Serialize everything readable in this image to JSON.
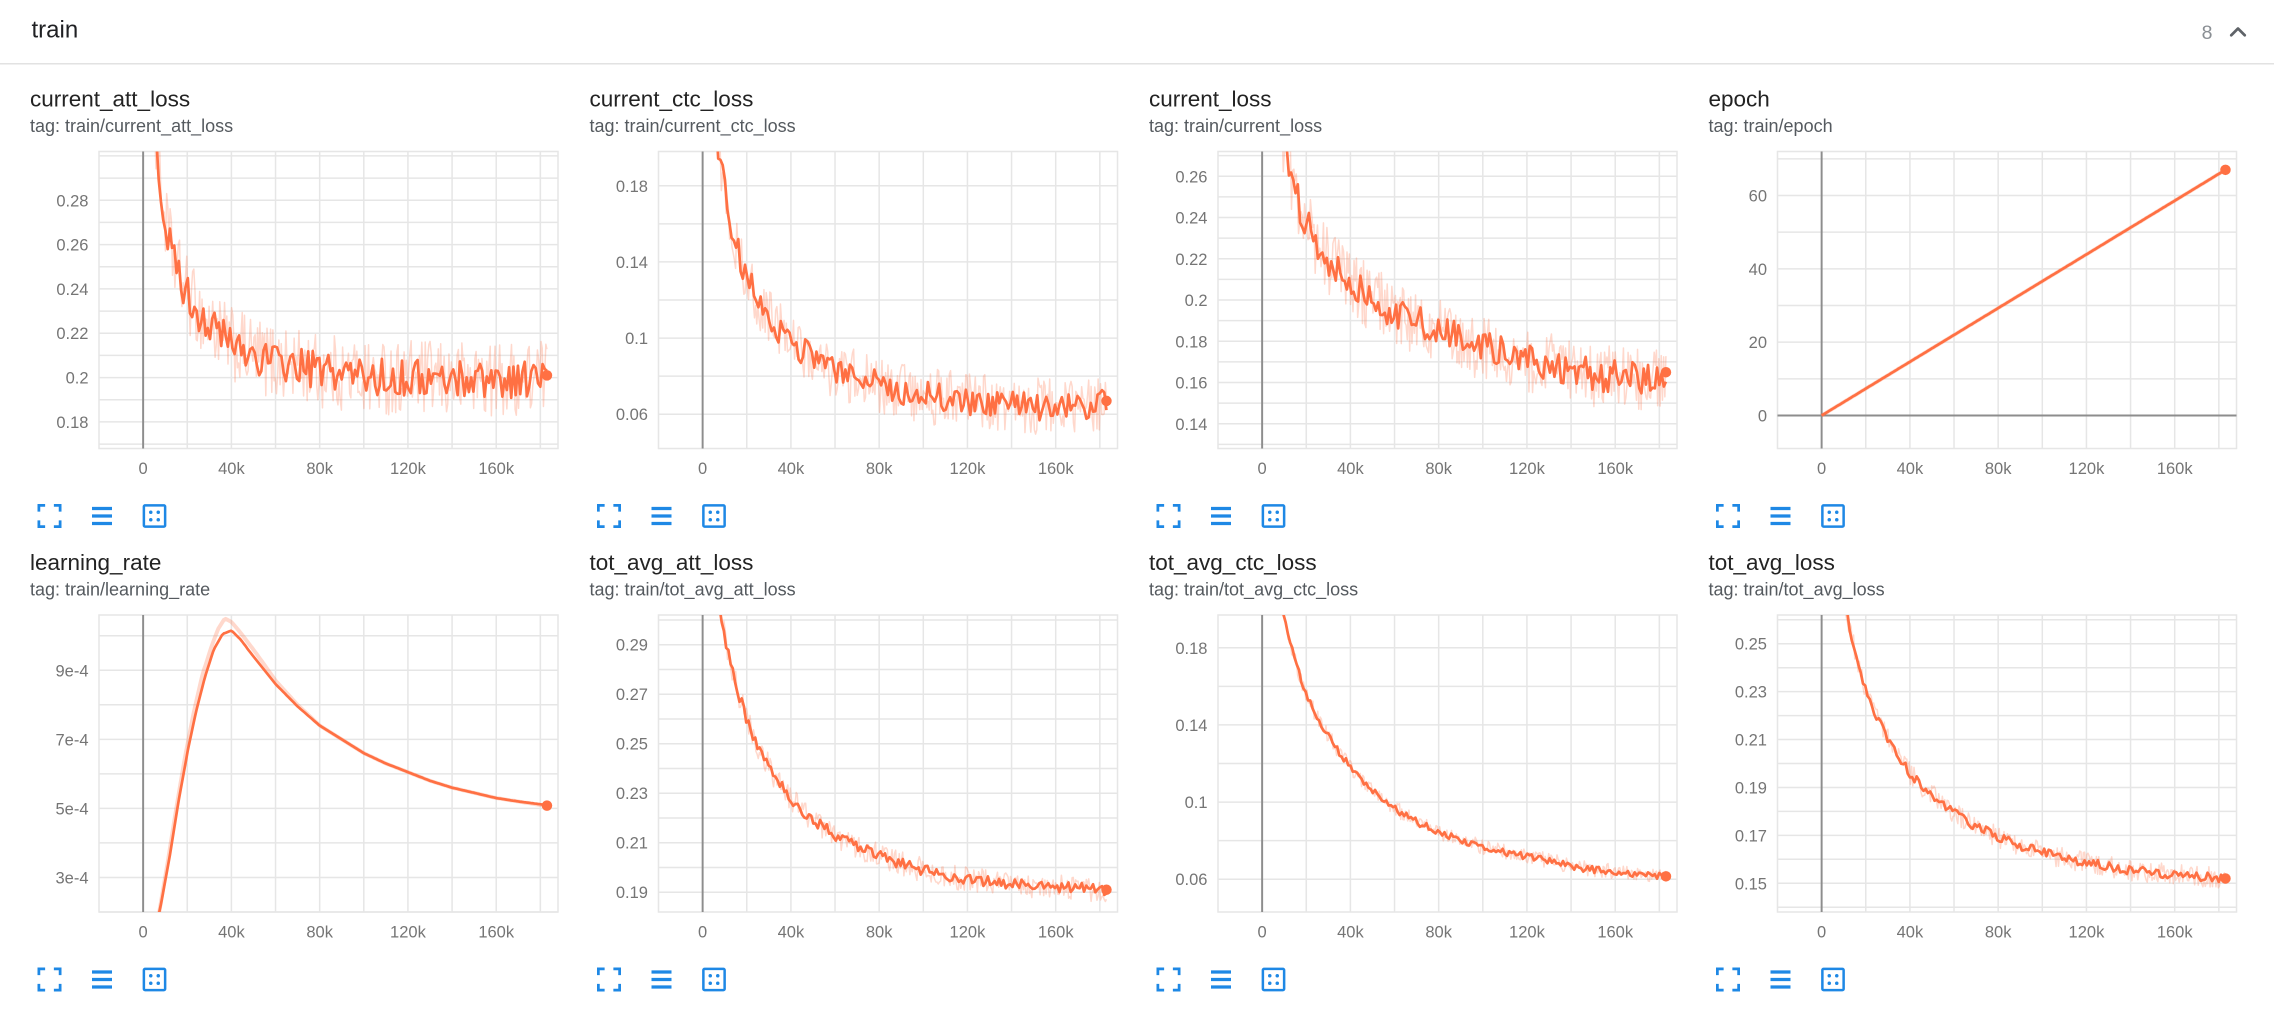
{
  "header": {
    "section_title": "train",
    "card_count": "8"
  },
  "colors": {
    "line": "#ff7043",
    "line_light_opacity": 0.27,
    "icon_blue": "#1e88e5",
    "grid": "#e6e6e6",
    "zero_line": "#8d8d8d",
    "tick_label": "#757575",
    "divider": "#e2e2e2"
  },
  "card_controls": {
    "buttons": [
      {
        "name": "fullscreen-button",
        "icon": "fullscreen-icon"
      },
      {
        "name": "data-table-button",
        "icon": "data-table-icon"
      },
      {
        "name": "fit-domain-button",
        "icon": "fit-domain-icon"
      }
    ]
  },
  "chart_data": [
    {
      "type": "line",
      "title": "current_att_loss",
      "tag": "tag: train/current_att_loss",
      "xlabel": "",
      "ylabel": "",
      "legend": "none",
      "grid": true,
      "xlim": [
        -20000,
        188000
      ],
      "x_ticks": [
        0,
        40000,
        80000,
        120000,
        160000
      ],
      "x_tick_labels": [
        "0",
        "40k",
        "80k",
        "120k",
        "160k"
      ],
      "ylim": [
        0.168,
        0.302
      ],
      "y_ticks": [
        0.18,
        0.2,
        0.22,
        0.24,
        0.26,
        0.28
      ],
      "y_tick_labels": [
        "0.18",
        "0.2",
        "0.22",
        "0.24",
        "0.26",
        "0.28"
      ],
      "noise": 0.0085,
      "raw_noise": 0.017,
      "end_dot": true,
      "trend": [
        [
          1000,
          0.41
        ],
        [
          2500,
          0.36
        ],
        [
          5000,
          0.315
        ],
        [
          8000,
          0.285
        ],
        [
          11000,
          0.265
        ],
        [
          14000,
          0.252
        ],
        [
          18000,
          0.242
        ],
        [
          22000,
          0.234
        ],
        [
          27000,
          0.227
        ],
        [
          33000,
          0.221
        ],
        [
          40000,
          0.215
        ],
        [
          48000,
          0.211
        ],
        [
          56000,
          0.208
        ],
        [
          65000,
          0.206
        ],
        [
          75000,
          0.204
        ],
        [
          90000,
          0.202
        ],
        [
          105000,
          0.2
        ],
        [
          120000,
          0.2
        ],
        [
          135000,
          0.199
        ],
        [
          150000,
          0.2
        ],
        [
          165000,
          0.199
        ],
        [
          175000,
          0.2
        ],
        [
          183000,
          0.201
        ]
      ]
    },
    {
      "type": "line",
      "title": "current_ctc_loss",
      "tag": "tag: train/current_ctc_loss",
      "xlabel": "",
      "ylabel": "",
      "legend": "none",
      "grid": true,
      "xlim": [
        -20000,
        188000
      ],
      "x_ticks": [
        0,
        40000,
        80000,
        120000,
        160000
      ],
      "x_tick_labels": [
        "0",
        "40k",
        "80k",
        "120k",
        "160k"
      ],
      "ylim": [
        0.042,
        0.198
      ],
      "y_ticks": [
        0.06,
        0.1,
        0.14,
        0.18
      ],
      "y_tick_labels": [
        "0.06",
        "0.1",
        "0.14",
        "0.18"
      ],
      "noise": 0.0075,
      "raw_noise": 0.015,
      "end_dot": true,
      "trend": [
        [
          1000,
          0.3
        ],
        [
          3000,
          0.25
        ],
        [
          6000,
          0.21
        ],
        [
          9000,
          0.185
        ],
        [
          12000,
          0.165
        ],
        [
          15000,
          0.15
        ],
        [
          19000,
          0.135
        ],
        [
          24000,
          0.122
        ],
        [
          30000,
          0.111
        ],
        [
          37000,
          0.101
        ],
        [
          45000,
          0.093
        ],
        [
          55000,
          0.086
        ],
        [
          65000,
          0.081
        ],
        [
          78000,
          0.076
        ],
        [
          92000,
          0.072
        ],
        [
          106000,
          0.069
        ],
        [
          120000,
          0.067
        ],
        [
          135000,
          0.065
        ],
        [
          150000,
          0.064
        ],
        [
          165000,
          0.064
        ],
        [
          175000,
          0.065
        ],
        [
          183000,
          0.067
        ]
      ]
    },
    {
      "type": "line",
      "title": "current_loss",
      "tag": "tag: train/current_loss",
      "xlabel": "",
      "ylabel": "",
      "legend": "none",
      "grid": true,
      "xlim": [
        -20000,
        188000
      ],
      "x_ticks": [
        0,
        40000,
        80000,
        120000,
        160000
      ],
      "x_tick_labels": [
        "0",
        "40k",
        "80k",
        "120k",
        "160k"
      ],
      "ylim": [
        0.128,
        0.272
      ],
      "y_ticks": [
        0.14,
        0.16,
        0.18,
        0.2,
        0.22,
        0.24,
        0.26
      ],
      "y_tick_labels": [
        "0.14",
        "0.16",
        "0.18",
        "0.2",
        "0.22",
        "0.24",
        "0.26"
      ],
      "noise": 0.008,
      "raw_noise": 0.016,
      "end_dot": true,
      "trend": [
        [
          1000,
          0.37
        ],
        [
          3000,
          0.33
        ],
        [
          6000,
          0.3
        ],
        [
          9000,
          0.28
        ],
        [
          12000,
          0.265
        ],
        [
          15000,
          0.252
        ],
        [
          19000,
          0.24
        ],
        [
          24000,
          0.229
        ],
        [
          30000,
          0.219
        ],
        [
          37000,
          0.211
        ],
        [
          45000,
          0.204
        ],
        [
          55000,
          0.197
        ],
        [
          65000,
          0.192
        ],
        [
          78000,
          0.186
        ],
        [
          92000,
          0.18
        ],
        [
          106000,
          0.175
        ],
        [
          120000,
          0.171
        ],
        [
          135000,
          0.167
        ],
        [
          150000,
          0.164
        ],
        [
          165000,
          0.162
        ],
        [
          175000,
          0.163
        ],
        [
          183000,
          0.165
        ]
      ]
    },
    {
      "type": "line",
      "title": "epoch",
      "tag": "tag: train/epoch",
      "xlabel": "",
      "ylabel": "",
      "legend": "none",
      "grid": true,
      "xlim": [
        -20000,
        188000
      ],
      "x_ticks": [
        0,
        40000,
        80000,
        120000,
        160000
      ],
      "x_tick_labels": [
        "0",
        "40k",
        "80k",
        "120k",
        "160k"
      ],
      "ylim": [
        -9,
        72
      ],
      "y_ticks": [
        0,
        20,
        40,
        60
      ],
      "y_tick_labels": [
        "0",
        "20",
        "40",
        "60"
      ],
      "noise": 0,
      "raw_noise": 0,
      "end_dot": true,
      "zero_y_line": true,
      "trend": [
        [
          0,
          0
        ],
        [
          183000,
          67
        ]
      ]
    },
    {
      "type": "line",
      "title": "learning_rate",
      "tag": "tag: train/learning_rate",
      "xlabel": "",
      "ylabel": "",
      "legend": "none",
      "grid": true,
      "xlim": [
        -20000,
        188000
      ],
      "x_ticks": [
        0,
        40000,
        80000,
        120000,
        160000
      ],
      "x_tick_labels": [
        "0",
        "40k",
        "80k",
        "120k",
        "160k"
      ],
      "ylim": [
        0.0002,
        0.00106
      ],
      "y_ticks": [
        0.0003,
        0.0005,
        0.0007,
        0.0009
      ],
      "y_tick_labels": [
        "3e-4",
        "5e-4",
        "7e-4",
        "9e-4"
      ],
      "noise": 0,
      "raw_noise": 0,
      "end_dot": true,
      "trend": [
        [
          4000,
          0.0001
        ],
        [
          8000,
          0.00022
        ],
        [
          12000,
          0.00036
        ],
        [
          16000,
          0.00052
        ],
        [
          20000,
          0.00066
        ],
        [
          24000,
          0.00078
        ],
        [
          28000,
          0.00088
        ],
        [
          32000,
          0.00096
        ],
        [
          36000,
          0.001005
        ],
        [
          40000,
          0.001015
        ],
        [
          44000,
          0.00099
        ],
        [
          50000,
          0.00094
        ],
        [
          60000,
          0.00086
        ],
        [
          70000,
          0.000795
        ],
        [
          80000,
          0.00074
        ],
        [
          90000,
          0.0007
        ],
        [
          100000,
          0.00066
        ],
        [
          110000,
          0.00063
        ],
        [
          120000,
          0.000605
        ],
        [
          130000,
          0.00058
        ],
        [
          140000,
          0.00056
        ],
        [
          150000,
          0.000545
        ],
        [
          160000,
          0.00053
        ],
        [
          170000,
          0.00052
        ],
        [
          180000,
          0.000512
        ],
        [
          183000,
          0.000508
        ]
      ],
      "raw_trend": [
        [
          3000,
          6e-05
        ],
        [
          7000,
          0.00019
        ],
        [
          11000,
          0.00034
        ],
        [
          15000,
          0.0005
        ],
        [
          19000,
          0.00065
        ],
        [
          23000,
          0.00078
        ],
        [
          27000,
          0.00089
        ],
        [
          31000,
          0.00097
        ],
        [
          34000,
          0.00102
        ],
        [
          37000,
          0.00105
        ],
        [
          40000,
          0.00104
        ],
        [
          44000,
          0.00101
        ],
        [
          50000,
          0.00096
        ],
        [
          60000,
          0.00087
        ],
        [
          70000,
          0.0008
        ],
        [
          80000,
          0.00074
        ],
        [
          90000,
          0.0007
        ],
        [
          100000,
          0.00066
        ],
        [
          110000,
          0.00063
        ],
        [
          120000,
          0.000605
        ],
        [
          130000,
          0.00058
        ],
        [
          140000,
          0.00056
        ],
        [
          150000,
          0.000545
        ],
        [
          160000,
          0.00053
        ],
        [
          170000,
          0.00052
        ],
        [
          180000,
          0.00051
        ],
        [
          183000,
          0.000508
        ]
      ]
    },
    {
      "type": "line",
      "title": "tot_avg_att_loss",
      "tag": "tag: train/tot_avg_att_loss",
      "xlabel": "",
      "ylabel": "",
      "legend": "none",
      "grid": true,
      "xlim": [
        -20000,
        188000
      ],
      "x_ticks": [
        0,
        40000,
        80000,
        120000,
        160000
      ],
      "x_tick_labels": [
        "0",
        "40k",
        "80k",
        "120k",
        "160k"
      ],
      "ylim": [
        0.182,
        0.302
      ],
      "y_ticks": [
        0.19,
        0.21,
        0.23,
        0.25,
        0.27,
        0.29
      ],
      "y_tick_labels": [
        "0.19",
        "0.21",
        "0.23",
        "0.25",
        "0.27",
        "0.29"
      ],
      "noise": 0.0022,
      "raw_noise": 0.005,
      "end_dot": true,
      "trend": [
        [
          500,
          0.4
        ],
        [
          2000,
          0.345
        ],
        [
          4000,
          0.325
        ],
        [
          7000,
          0.307
        ],
        [
          10000,
          0.293
        ],
        [
          13000,
          0.281
        ],
        [
          16000,
          0.271
        ],
        [
          20000,
          0.26
        ],
        [
          24000,
          0.251
        ],
        [
          28000,
          0.244
        ],
        [
          33000,
          0.236
        ],
        [
          40000,
          0.2275
        ],
        [
          47000,
          0.2215
        ],
        [
          55000,
          0.216
        ],
        [
          63000,
          0.2115
        ],
        [
          72000,
          0.2075
        ],
        [
          82000,
          0.204
        ],
        [
          92000,
          0.201
        ],
        [
          102000,
          0.1985
        ],
        [
          112000,
          0.1965
        ],
        [
          122000,
          0.195
        ],
        [
          132000,
          0.194
        ],
        [
          142000,
          0.1932
        ],
        [
          152000,
          0.1925
        ],
        [
          162000,
          0.192
        ],
        [
          172000,
          0.1915
        ],
        [
          183000,
          0.191
        ]
      ]
    },
    {
      "type": "line",
      "title": "tot_avg_ctc_loss",
      "tag": "tag: train/tot_avg_ctc_loss",
      "xlabel": "",
      "ylabel": "",
      "legend": "none",
      "grid": true,
      "xlim": [
        -20000,
        188000
      ],
      "x_ticks": [
        0,
        40000,
        80000,
        120000,
        160000
      ],
      "x_tick_labels": [
        "0",
        "40k",
        "80k",
        "120k",
        "160k"
      ],
      "ylim": [
        0.043,
        0.197
      ],
      "y_ticks": [
        0.06,
        0.1,
        0.14,
        0.18
      ],
      "y_tick_labels": [
        "0.06",
        "0.1",
        "0.14",
        "0.18"
      ],
      "noise": 0.0018,
      "raw_noise": 0.004,
      "end_dot": true,
      "trend": [
        [
          500,
          0.3
        ],
        [
          2000,
          0.262
        ],
        [
          4000,
          0.238
        ],
        [
          7000,
          0.214
        ],
        [
          10000,
          0.196
        ],
        [
          13000,
          0.181
        ],
        [
          16000,
          0.169
        ],
        [
          20000,
          0.156
        ],
        [
          24000,
          0.146
        ],
        [
          28000,
          0.138
        ],
        [
          33000,
          0.129
        ],
        [
          40000,
          0.118
        ],
        [
          47000,
          0.109
        ],
        [
          55000,
          0.101
        ],
        [
          63000,
          0.0945
        ],
        [
          72000,
          0.0885
        ],
        [
          82000,
          0.0835
        ],
        [
          92000,
          0.0795
        ],
        [
          102000,
          0.0762
        ],
        [
          112000,
          0.0736
        ],
        [
          122000,
          0.0714
        ],
        [
          132000,
          0.0693
        ],
        [
          142000,
          0.066
        ],
        [
          152000,
          0.0648
        ],
        [
          162000,
          0.0636
        ],
        [
          172000,
          0.0625
        ],
        [
          183000,
          0.0615
        ]
      ]
    },
    {
      "type": "line",
      "title": "tot_avg_loss",
      "tag": "tag: train/tot_avg_loss",
      "xlabel": "",
      "ylabel": "",
      "legend": "none",
      "grid": true,
      "xlim": [
        -20000,
        188000
      ],
      "x_ticks": [
        0,
        40000,
        80000,
        120000,
        160000
      ],
      "x_tick_labels": [
        "0",
        "40k",
        "80k",
        "120k",
        "160k"
      ],
      "ylim": [
        0.138,
        0.262
      ],
      "y_ticks": [
        0.15,
        0.17,
        0.19,
        0.21,
        0.23,
        0.25
      ],
      "y_tick_labels": [
        "0.15",
        "0.17",
        "0.19",
        "0.21",
        "0.23",
        "0.25"
      ],
      "noise": 0.002,
      "raw_noise": 0.0045,
      "end_dot": true,
      "trend": [
        [
          500,
          0.37
        ],
        [
          2000,
          0.322
        ],
        [
          4000,
          0.301
        ],
        [
          7000,
          0.285
        ],
        [
          10000,
          0.27
        ],
        [
          13000,
          0.256
        ],
        [
          16000,
          0.244
        ],
        [
          20000,
          0.231
        ],
        [
          24000,
          0.221
        ],
        [
          28000,
          0.2135
        ],
        [
          33000,
          0.205
        ],
        [
          40000,
          0.196
        ],
        [
          47000,
          0.189
        ],
        [
          55000,
          0.183
        ],
        [
          63000,
          0.1775
        ],
        [
          72000,
          0.1728
        ],
        [
          82000,
          0.1685
        ],
        [
          92000,
          0.1652
        ],
        [
          102000,
          0.1624
        ],
        [
          112000,
          0.1601
        ],
        [
          122000,
          0.1583
        ],
        [
          132000,
          0.1568
        ],
        [
          142000,
          0.1553
        ],
        [
          152000,
          0.1543
        ],
        [
          162000,
          0.1535
        ],
        [
          172000,
          0.1528
        ],
        [
          183000,
          0.152
        ]
      ]
    }
  ]
}
